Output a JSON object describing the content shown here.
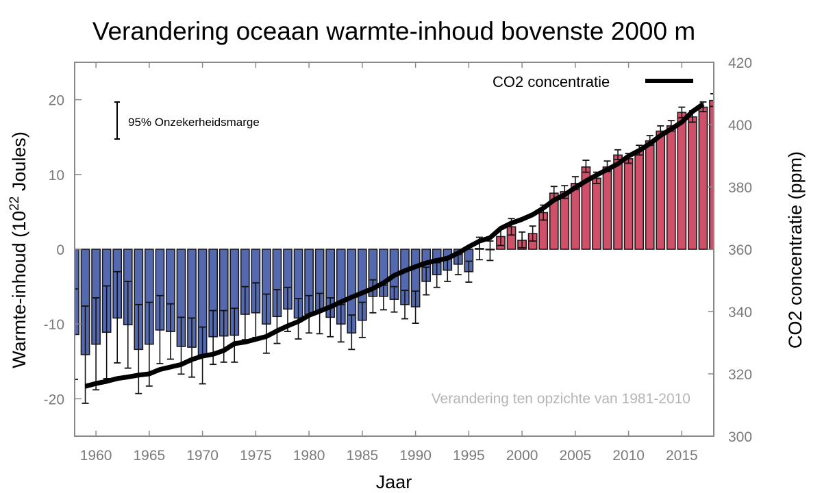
{
  "chart_data": {
    "type": "bar",
    "title": "Verandering oceaan warmte-inhoud bovenste 2000 m",
    "xlabel": "Jaar",
    "ylabel": "Warmte-inhoud (10",
    "ylabel_sup": "22",
    "ylabel_suffix": " Joules)",
    "y2label": "CO2 concentratie (ppm)",
    "xlim": [
      1958,
      2018
    ],
    "ylim": [
      -25,
      25
    ],
    "y2lim": [
      300,
      420
    ],
    "x_ticks": [
      1960,
      1965,
      1970,
      1975,
      1980,
      1985,
      1990,
      1995,
      2000,
      2005,
      2010,
      2015
    ],
    "x_tick_labels": [
      "1960",
      "1965",
      "1970",
      "1975",
      "1980",
      "1985",
      "1990",
      "1995",
      "2000",
      "2005",
      "2010",
      "2015"
    ],
    "y_ticks": [
      -20,
      -10,
      0,
      10,
      20
    ],
    "y_tick_labels": [
      "-20",
      "-10",
      "0",
      "10",
      "20"
    ],
    "y2_ticks": [
      300,
      320,
      340,
      360,
      380,
      400,
      420
    ],
    "y2_tick_labels": [
      "300",
      "320",
      "340",
      "360",
      "380",
      "400",
      "420"
    ],
    "grid": false,
    "colors": {
      "negative": "#5469b0",
      "positive": "#d04f69",
      "co2_line": "#000000",
      "axis": "#888888"
    },
    "legend": {
      "label": "CO2 concentratie",
      "position": "top-right"
    },
    "uncertainty_legend": {
      "label": "95% Onzekerheidsmarge",
      "position": "top-left"
    },
    "annotation": "Verandering ten opzichte van 1981-2010",
    "years": [
      1958,
      1959,
      1960,
      1961,
      1962,
      1963,
      1964,
      1965,
      1966,
      1967,
      1968,
      1969,
      1970,
      1971,
      1972,
      1973,
      1974,
      1975,
      1976,
      1977,
      1978,
      1979,
      1980,
      1981,
      1982,
      1983,
      1984,
      1985,
      1986,
      1987,
      1988,
      1989,
      1990,
      1991,
      1992,
      1993,
      1994,
      1995,
      1996,
      1997,
      1998,
      1999,
      2000,
      2001,
      2002,
      2003,
      2004,
      2005,
      2006,
      2007,
      2008,
      2009,
      2010,
      2011,
      2012,
      2013,
      2014,
      2015,
      2016,
      2017,
      2018
    ],
    "series": [
      {
        "name": "Warmte-inhoud",
        "values": [
          -11.4,
          -14.1,
          -12.7,
          -11.1,
          -9.2,
          -10.1,
          -13.4,
          -12.7,
          -10.8,
          -11.0,
          -13.0,
          -13.1,
          -14.1,
          -11.7,
          -11.6,
          -11.5,
          -8.7,
          -8.5,
          -10.0,
          -9.0,
          -8.0,
          -9.2,
          -8.7,
          -8.2,
          -9.1,
          -10.0,
          -11.2,
          -9.5,
          -6.3,
          -6.3,
          -6.7,
          -7.4,
          -7.7,
          -4.3,
          -3.4,
          -2.8,
          -2.0,
          -3.0,
          0.1,
          0.0,
          1.7,
          3.0,
          1.2,
          2.1,
          4.9,
          7.5,
          7.7,
          8.8,
          11.0,
          9.5,
          11.0,
          12.6,
          12.1,
          13.2,
          14.5,
          15.8,
          16.5,
          18.3,
          17.7,
          19.0,
          19.9
        ],
        "error_lower": [
          -17.4,
          -20.6,
          -18.8,
          -17.3,
          -15.2,
          -15.9,
          -19.3,
          -18.3,
          -15.3,
          -14.7,
          -16.7,
          -17.1,
          -18.0,
          -15.4,
          -15.1,
          -15.1,
          -12.1,
          -11.8,
          -13.9,
          -12.6,
          -11.0,
          -12.0,
          -11.2,
          -11.3,
          -11.7,
          -12.4,
          -13.4,
          -11.8,
          -8.5,
          -8.1,
          -8.4,
          -9.3,
          -9.9,
          -6.1,
          -5.1,
          -4.3,
          -3.4,
          -4.4,
          -1.4,
          -1.5,
          0.5,
          1.9,
          0.2,
          1.1,
          3.9,
          6.6,
          6.8,
          8.0,
          10.3,
          8.8,
          10.4,
          12.0,
          11.5,
          12.6,
          13.9,
          15.2,
          15.8,
          17.6,
          17.0,
          18.4,
          19.1
        ],
        "error_upper": [
          -5.3,
          -7.6,
          -6.5,
          -4.9,
          -3.0,
          -4.3,
          -7.4,
          -7.1,
          -6.2,
          -7.3,
          -9.1,
          -9.2,
          -10.4,
          -8.2,
          -8.2,
          -7.9,
          -5.0,
          -4.5,
          -6.0,
          -5.4,
          -5.1,
          -6.6,
          -6.2,
          -5.9,
          -6.5,
          -7.4,
          -8.8,
          -7.1,
          -4.1,
          -4.8,
          -5.0,
          -5.5,
          -5.6,
          -2.4,
          -1.8,
          -1.3,
          -0.7,
          -1.6,
          1.6,
          1.1,
          2.7,
          4.1,
          2.3,
          3.1,
          5.9,
          8.4,
          8.5,
          9.7,
          11.9,
          10.3,
          11.8,
          13.3,
          12.8,
          13.9,
          15.2,
          16.5,
          17.2,
          19.0,
          18.5,
          19.7,
          20.8
        ]
      },
      {
        "name": "CO2 concentratie",
        "axis": "right",
        "years": [
          1959,
          1960,
          1961,
          1962,
          1963,
          1964,
          1965,
          1966,
          1967,
          1968,
          1969,
          1970,
          1971,
          1972,
          1973,
          1974,
          1975,
          1976,
          1977,
          1978,
          1979,
          1980,
          1981,
          1982,
          1983,
          1984,
          1985,
          1986,
          1987,
          1988,
          1989,
          1990,
          1991,
          1992,
          1993,
          1994,
          1995,
          1996,
          1997,
          1998,
          1999,
          2000,
          2001,
          2002,
          2003,
          2004,
          2005,
          2006,
          2007,
          2008,
          2009,
          2010,
          2011,
          2012,
          2013,
          2014,
          2015,
          2016,
          2017
        ],
        "values": [
          316.0,
          316.9,
          317.6,
          318.5,
          319.0,
          319.6,
          320.0,
          321.4,
          322.2,
          323.0,
          324.6,
          325.7,
          326.3,
          327.5,
          329.7,
          330.2,
          331.1,
          332.0,
          333.8,
          335.4,
          336.8,
          338.8,
          340.1,
          341.5,
          343.1,
          344.6,
          346.0,
          347.4,
          349.2,
          351.6,
          353.1,
          354.4,
          355.6,
          356.4,
          357.1,
          358.8,
          360.8,
          362.6,
          363.7,
          366.7,
          368.4,
          369.6,
          371.1,
          373.2,
          375.8,
          377.5,
          379.8,
          381.9,
          383.8,
          385.6,
          387.4,
          389.9,
          391.7,
          393.9,
          396.5,
          398.6,
          400.8,
          404.2,
          406.6
        ]
      }
    ]
  }
}
